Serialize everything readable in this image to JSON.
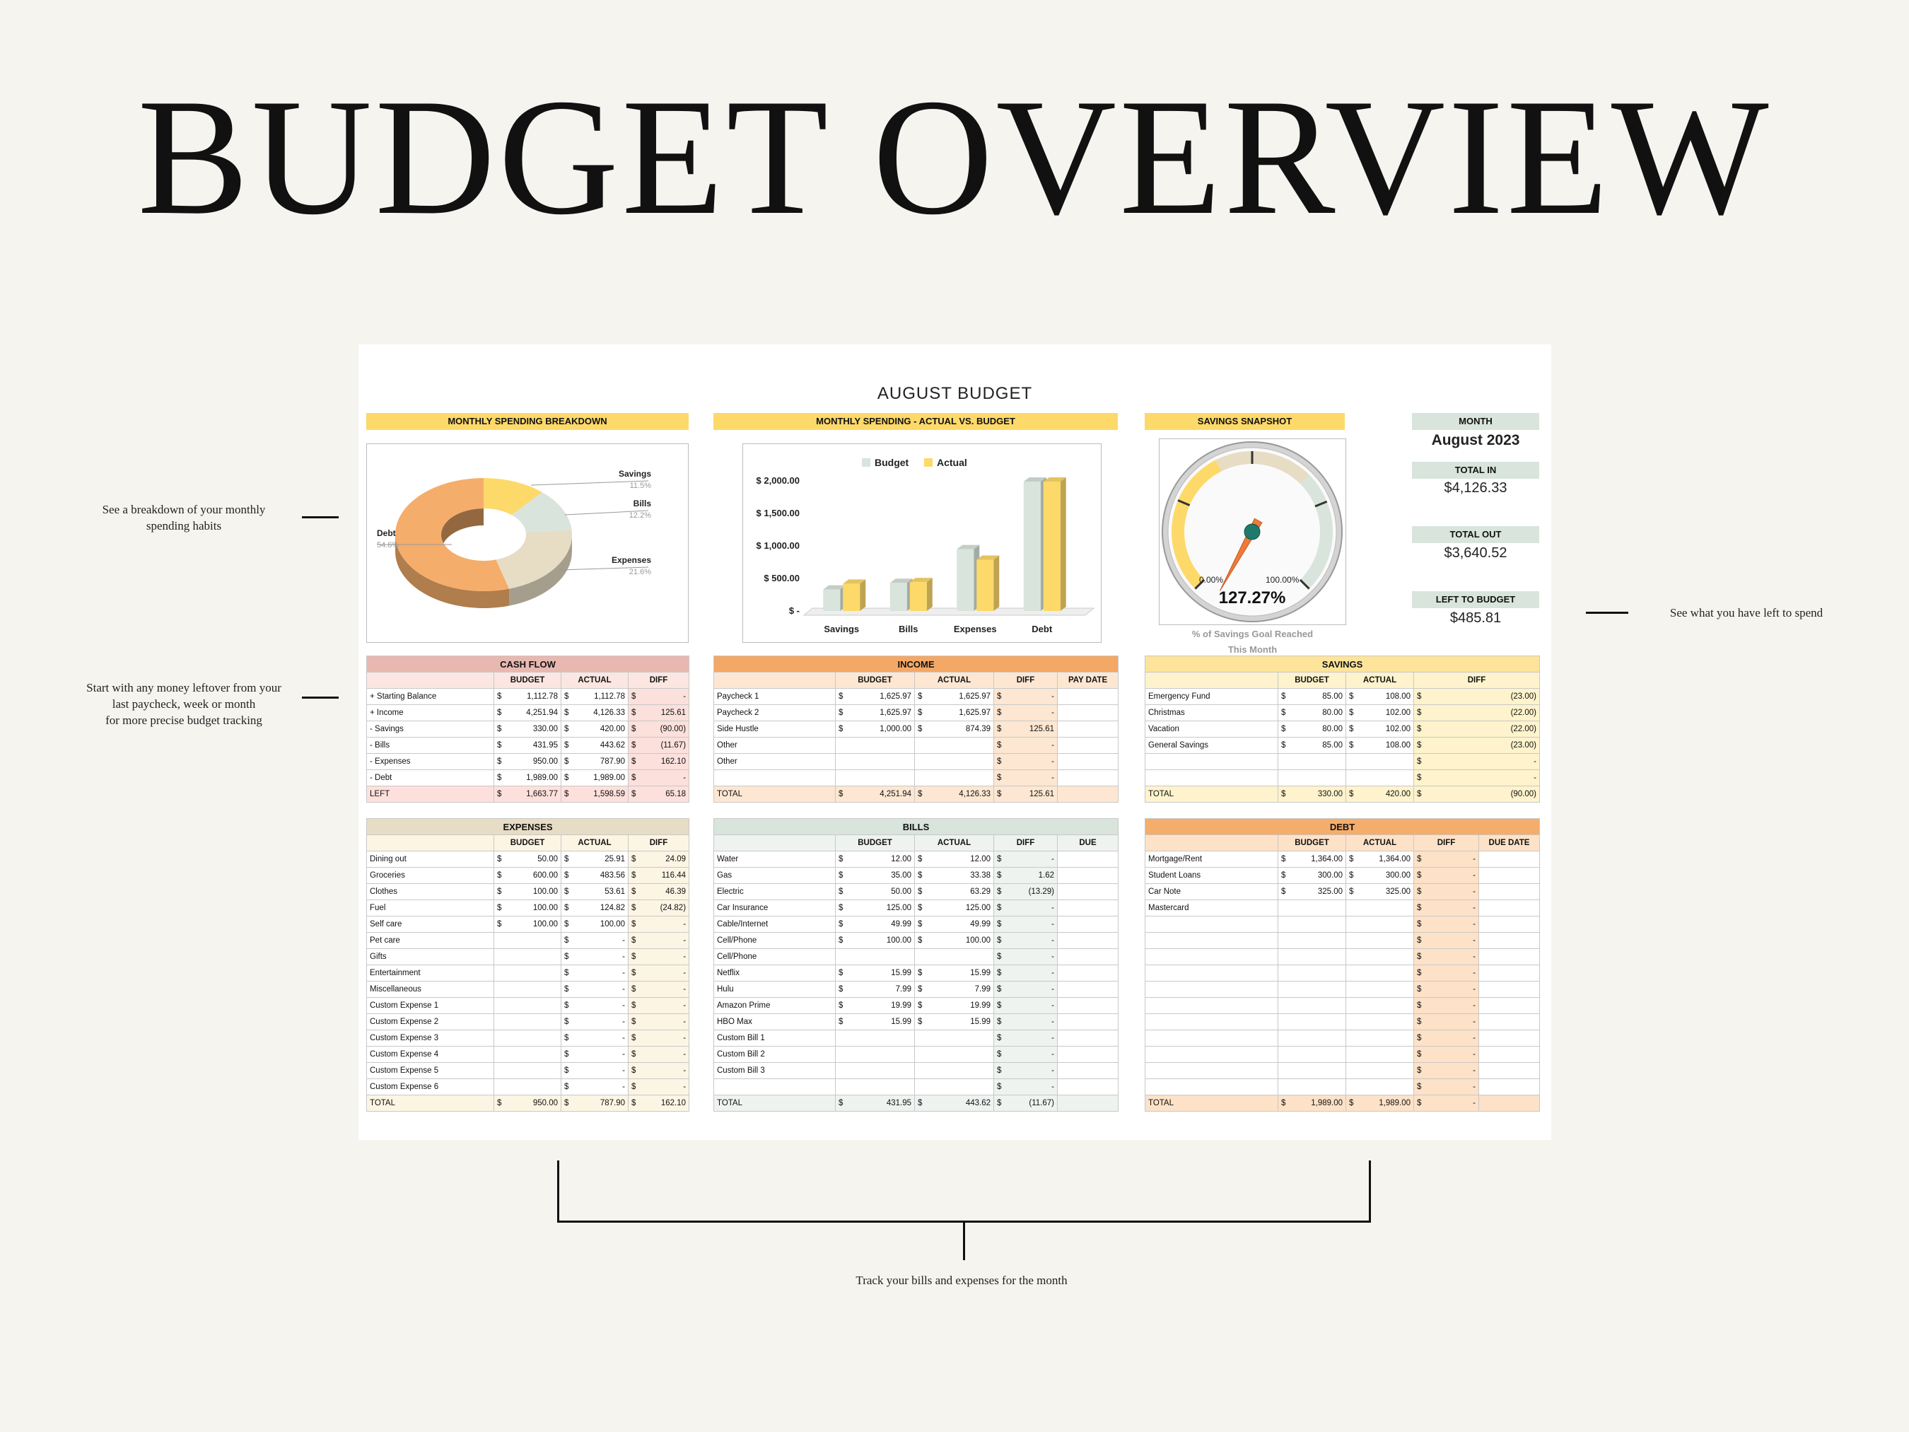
{
  "page_title": "BUDGET OVERVIEW",
  "notes": {
    "breakdown": [
      "See a breakdown of your monthly",
      "spending habits"
    ],
    "leftover": [
      "Start with any money leftover from your",
      "last paycheck, week or month",
      "for more precise budget tracking"
    ],
    "left_to_spend": "See what you have left to spend",
    "track": "Track your bills and expenses for the month"
  },
  "sheet": {
    "title": "AUGUST BUDGET",
    "sections": {
      "breakdown": "MONTHLY SPENDING BREAKDOWN",
      "actual_vs_budget": "MONTHLY SPENDING - ACTUAL VS. BUDGET",
      "savings_snapshot": "SAVINGS SNAPSHOT"
    },
    "kpis": {
      "month_label": "MONTH",
      "month_value": "August 2023",
      "total_in_label": "TOTAL IN",
      "total_in_value": "$4,126.33",
      "total_out_label": "TOTAL OUT",
      "total_out_value": "$3,640.52",
      "left_label": "LEFT TO BUDGET",
      "left_value": "$485.81"
    },
    "gauge": {
      "min_label": "0.00%",
      "max_label": "100.00%",
      "value": 127.27,
      "value_label": "127.27%",
      "caption": [
        "% of Savings Goal Reached",
        "This Month"
      ]
    },
    "tables": {
      "cashflow": {
        "title": "CASH FLOW",
        "columns": [
          "",
          "BUDGET",
          "ACTUAL",
          "DIFF"
        ],
        "rows": [
          [
            "+ Starting Balance",
            "1,112.78",
            "1,112.78",
            "-"
          ],
          [
            "+ Income",
            "4,251.94",
            "4,126.33",
            "125.61"
          ],
          [
            "- Savings",
            "330.00",
            "420.00",
            "(90.00)"
          ],
          [
            "- Bills",
            "431.95",
            "443.62",
            "(11.67)"
          ],
          [
            "- Expenses",
            "950.00",
            "787.90",
            "162.10"
          ],
          [
            "- Debt",
            "1,989.00",
            "1,989.00",
            "-"
          ],
          [
            "LEFT",
            "1,663.77",
            "1,598.59",
            "65.18"
          ]
        ]
      },
      "income": {
        "title": "INCOME",
        "columns": [
          "",
          "BUDGET",
          "ACTUAL",
          "DIFF",
          "PAY DATE"
        ],
        "rows": [
          [
            "Paycheck 1",
            "1,625.97",
            "1,625.97",
            "-",
            ""
          ],
          [
            "Paycheck 2",
            "1,625.97",
            "1,625.97",
            "-",
            ""
          ],
          [
            "Side Hustle",
            "1,000.00",
            "874.39",
            "125.61",
            ""
          ],
          [
            "Other",
            "",
            "",
            "-",
            ""
          ],
          [
            "Other",
            "",
            "",
            "-",
            ""
          ],
          [
            "",
            "",
            "",
            "-",
            ""
          ],
          [
            "TOTAL",
            "4,251.94",
            "4,126.33",
            "125.61",
            ""
          ]
        ]
      },
      "savings": {
        "title": "SAVINGS",
        "columns": [
          "",
          "BUDGET",
          "ACTUAL",
          "DIFF"
        ],
        "rows": [
          [
            "Emergency Fund",
            "85.00",
            "108.00",
            "(23.00)"
          ],
          [
            "Christmas",
            "80.00",
            "102.00",
            "(22.00)"
          ],
          [
            "Vacation",
            "80.00",
            "102.00",
            "(22.00)"
          ],
          [
            "General Savings",
            "85.00",
            "108.00",
            "(23.00)"
          ],
          [
            "",
            "",
            "",
            "-"
          ],
          [
            "",
            "",
            "",
            "-"
          ],
          [
            "TOTAL",
            "330.00",
            "420.00",
            "(90.00)"
          ]
        ]
      },
      "expenses": {
        "title": "EXPENSES",
        "columns": [
          "",
          "BUDGET",
          "ACTUAL",
          "DIFF"
        ],
        "rows": [
          [
            "Dining out",
            "50.00",
            "25.91",
            "24.09"
          ],
          [
            "Groceries",
            "600.00",
            "483.56",
            "116.44"
          ],
          [
            "Clothes",
            "100.00",
            "53.61",
            "46.39"
          ],
          [
            "Fuel",
            "100.00",
            "124.82",
            "(24.82)"
          ],
          [
            "Self care",
            "100.00",
            "100.00",
            "-"
          ],
          [
            "Pet care",
            "",
            "-",
            "-"
          ],
          [
            "Gifts",
            "",
            "-",
            "-"
          ],
          [
            "Entertainment",
            "",
            "-",
            "-"
          ],
          [
            "Miscellaneous",
            "",
            "-",
            "-"
          ],
          [
            "Custom Expense 1",
            "",
            "-",
            "-"
          ],
          [
            "Custom Expense 2",
            "",
            "-",
            "-"
          ],
          [
            "Custom Expense 3",
            "",
            "-",
            "-"
          ],
          [
            "Custom Expense 4",
            "",
            "-",
            "-"
          ],
          [
            "Custom Expense 5",
            "",
            "-",
            "-"
          ],
          [
            "Custom Expense 6",
            "",
            "-",
            "-"
          ],
          [
            "TOTAL",
            "950.00",
            "787.90",
            "162.10"
          ]
        ]
      },
      "bills": {
        "title": "BILLS",
        "columns": [
          "",
          "BUDGET",
          "ACTUAL",
          "DIFF",
          "DUE"
        ],
        "rows": [
          [
            "Water",
            "12.00",
            "12.00",
            "-",
            ""
          ],
          [
            "Gas",
            "35.00",
            "33.38",
            "1.62",
            ""
          ],
          [
            "Electric",
            "50.00",
            "63.29",
            "(13.29)",
            ""
          ],
          [
            "Car Insurance",
            "125.00",
            "125.00",
            "-",
            ""
          ],
          [
            "Cable/Internet",
            "49.99",
            "49.99",
            "-",
            ""
          ],
          [
            "Cell/Phone",
            "100.00",
            "100.00",
            "-",
            ""
          ],
          [
            "Cell/Phone",
            "",
            "",
            "-",
            ""
          ],
          [
            "Netflix",
            "15.99",
            "15.99",
            "-",
            ""
          ],
          [
            "Hulu",
            "7.99",
            "7.99",
            "-",
            ""
          ],
          [
            "Amazon Prime",
            "19.99",
            "19.99",
            "-",
            ""
          ],
          [
            "HBO Max",
            "15.99",
            "15.99",
            "-",
            ""
          ],
          [
            "Custom Bill 1",
            "",
            "",
            "-",
            ""
          ],
          [
            "Custom Bill 2",
            "",
            "",
            "-",
            ""
          ],
          [
            "Custom Bill 3",
            "",
            "",
            "-",
            ""
          ],
          [
            "",
            "",
            "",
            "-",
            ""
          ],
          [
            "TOTAL",
            "431.95",
            "443.62",
            "(11.67)",
            ""
          ]
        ]
      },
      "debt": {
        "title": "DEBT",
        "columns": [
          "",
          "BUDGET",
          "ACTUAL",
          "DIFF",
          "DUE DATE"
        ],
        "rows": [
          [
            "Mortgage/Rent",
            "1,364.00",
            "1,364.00",
            "-",
            ""
          ],
          [
            "Student Loans",
            "300.00",
            "300.00",
            "-",
            ""
          ],
          [
            "Car Note",
            "325.00",
            "325.00",
            "-",
            ""
          ],
          [
            "Mastercard",
            "",
            "",
            "-",
            ""
          ],
          [
            "",
            "",
            "",
            "-",
            ""
          ],
          [
            "",
            "",
            "",
            "-",
            ""
          ],
          [
            "",
            "",
            "",
            "-",
            ""
          ],
          [
            "",
            "",
            "",
            "-",
            ""
          ],
          [
            "",
            "",
            "",
            "-",
            ""
          ],
          [
            "",
            "",
            "",
            "-",
            ""
          ],
          [
            "",
            "",
            "",
            "-",
            ""
          ],
          [
            "",
            "",
            "",
            "-",
            ""
          ],
          [
            "",
            "",
            "",
            "-",
            ""
          ],
          [
            "",
            "",
            "",
            "-",
            ""
          ],
          [
            "",
            "",
            "",
            "-",
            ""
          ],
          [
            "TOTAL",
            "1,989.00",
            "1,989.00",
            "-",
            ""
          ]
        ]
      }
    }
  },
  "colors": {
    "yellow": "#fdd96a",
    "savings_green": "#d9e4dc",
    "cashflow_red": "#e8b8b0",
    "income_orange": "#f3a866",
    "debt_orange": "#f5ad6b",
    "expenses_tan": "#e7dcc4",
    "savings_hdr": "#fde49a"
  },
  "chart_data": [
    {
      "type": "pie",
      "title": "",
      "categories": [
        "Savings",
        "Bills",
        "Expenses",
        "Debt"
      ],
      "values": [
        11.5,
        12.2,
        21.6,
        54.6
      ],
      "labels": [
        "11.5%",
        "12.2%",
        "21.6%",
        "54.6%"
      ],
      "colors": [
        "#fdd96a",
        "#d9e4dc",
        "#e7dcc4",
        "#f5ad6b"
      ]
    },
    {
      "type": "bar",
      "title": "",
      "categories": [
        "Savings",
        "Bills",
        "Expenses",
        "Debt"
      ],
      "series": [
        {
          "name": "Budget",
          "values": [
            330,
            431.95,
            950,
            1989
          ]
        },
        {
          "name": "Actual",
          "values": [
            420,
            443.62,
            787.9,
            1989
          ]
        }
      ],
      "y_ticks": [
        "$ -",
        "$ 500.00",
        "$ 1,000.00",
        "$ 1,500.00",
        "$ 2,000.00"
      ],
      "ylim": [
        0,
        2000
      ],
      "legend": "top"
    }
  ]
}
